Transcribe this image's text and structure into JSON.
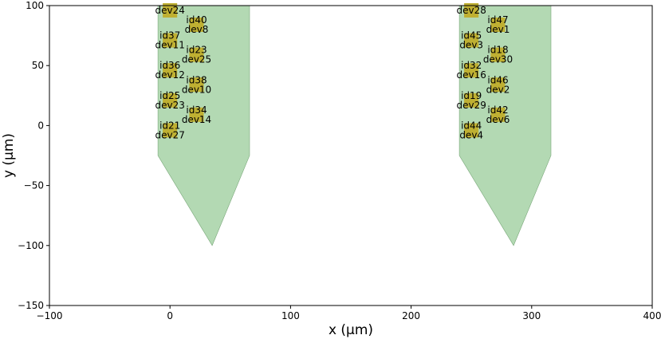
{
  "chart_data": {
    "type": "scatter",
    "xlabel": "x (μm)",
    "ylabel": "y (μm)",
    "xlim": [
      -100,
      400
    ],
    "ylim": [
      -150,
      100
    ],
    "xticks": [
      -100,
      0,
      100,
      200,
      300,
      400
    ],
    "yticks": [
      -150,
      -100,
      -50,
      0,
      50,
      100
    ],
    "xtick_labels": [
      "−100",
      "0",
      "100",
      "200",
      "300",
      "400"
    ],
    "ytick_labels": [
      "−150",
      "−100",
      "−50",
      "0",
      "50",
      "100"
    ],
    "grid": false,
    "shank_color": "#b3d9b3",
    "site_color": "#bfb032",
    "shanks": [
      {
        "outline": [
          [
            -10,
            100
          ],
          [
            66,
            100
          ],
          [
            66,
            -25
          ],
          [
            35,
            -100
          ],
          [
            -10,
            -25
          ]
        ]
      },
      {
        "outline": [
          [
            240,
            100
          ],
          [
            316,
            100
          ],
          [
            316,
            -25
          ],
          [
            285,
            -100
          ],
          [
            240,
            -25
          ]
        ]
      }
    ],
    "sites": [
      {
        "x": 0,
        "y": 96,
        "ids": [
          "dev24"
        ]
      },
      {
        "x": 0,
        "y": 71,
        "ids": [
          "id37",
          "dev11"
        ]
      },
      {
        "x": 0,
        "y": 46,
        "ids": [
          "id36",
          "dev12"
        ]
      },
      {
        "x": 0,
        "y": 21,
        "ids": [
          "id25",
          "dev23"
        ]
      },
      {
        "x": 0,
        "y": -4,
        "ids": [
          "id21",
          "dev27"
        ]
      },
      {
        "x": 22,
        "y": 84,
        "ids": [
          "id40",
          "dev8"
        ]
      },
      {
        "x": 22,
        "y": 59,
        "ids": [
          "id23",
          "dev25"
        ]
      },
      {
        "x": 22,
        "y": 34,
        "ids": [
          "id38",
          "dev10"
        ]
      },
      {
        "x": 22,
        "y": 9,
        "ids": [
          "id34",
          "dev14"
        ]
      },
      {
        "x": 250,
        "y": 96,
        "ids": [
          "dev28"
        ]
      },
      {
        "x": 250,
        "y": 71,
        "ids": [
          "id45",
          "dev3"
        ]
      },
      {
        "x": 250,
        "y": 46,
        "ids": [
          "id32",
          "dev16"
        ]
      },
      {
        "x": 250,
        "y": 21,
        "ids": [
          "id19",
          "dev29"
        ]
      },
      {
        "x": 250,
        "y": -4,
        "ids": [
          "id44",
          "dev4"
        ]
      },
      {
        "x": 272,
        "y": 84,
        "ids": [
          "id47",
          "dev1"
        ]
      },
      {
        "x": 272,
        "y": 59,
        "ids": [
          "id18",
          "dev30"
        ]
      },
      {
        "x": 272,
        "y": 34,
        "ids": [
          "id46",
          "dev2"
        ]
      },
      {
        "x": 272,
        "y": 9,
        "ids": [
          "id42",
          "dev6"
        ]
      }
    ]
  }
}
